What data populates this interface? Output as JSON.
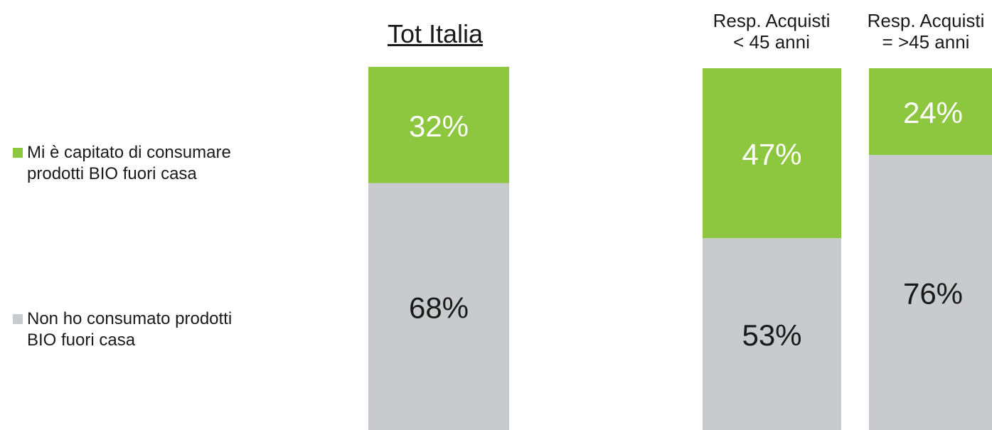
{
  "chart_data": {
    "type": "bar",
    "stacked": true,
    "categories": [
      "Tot Italia",
      "Resp. Acquisti\n< 45 anni",
      "Resp. Acquisti\n= >45 anni"
    ],
    "series": [
      {
        "name": "Mi è capitato di consumare\nprodotti BIO fuori casa",
        "color": "#8dc63f",
        "values": [
          32,
          47,
          24
        ]
      },
      {
        "name": "Non ho consumato prodotti\nBIO fuori casa",
        "color": "#c8cacd",
        "values": [
          68,
          53,
          76
        ]
      }
    ],
    "data_labels": [
      [
        "32%",
        "47%",
        "24%"
      ],
      [
        "68%",
        "53%",
        "76%"
      ]
    ],
    "ylim": [
      0,
      100
    ]
  }
}
